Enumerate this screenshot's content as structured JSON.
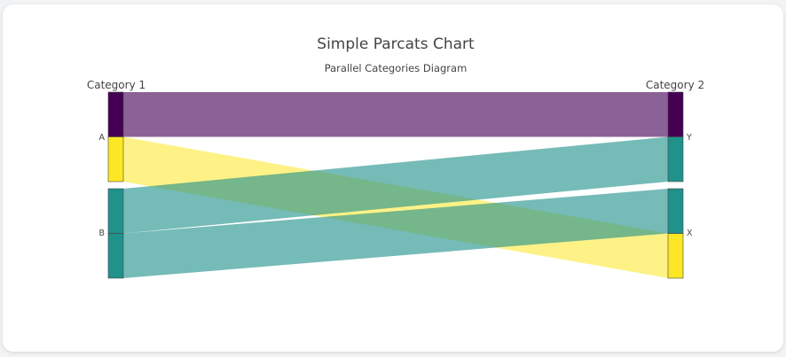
{
  "chart_data": {
    "type": "parcats",
    "title": "Simple Parcats Chart",
    "subtitle": "Parallel Categories Diagram",
    "dimensions": [
      {
        "label": "Category 1",
        "categories": [
          "A",
          "B"
        ]
      },
      {
        "label": "Category 2",
        "categories": [
          "Y",
          "X"
        ]
      }
    ],
    "flows": [
      {
        "from": "A",
        "to": "Y",
        "count": 1,
        "color": "#440154"
      },
      {
        "from": "A",
        "to": "X",
        "count": 1,
        "color": "#fde725"
      },
      {
        "from": "B",
        "to": "Y",
        "count": 1,
        "color": "#21918c"
      },
      {
        "from": "B",
        "to": "X",
        "count": 1,
        "color": "#21918c"
      }
    ],
    "colors": {
      "dark_purple": "#440154",
      "teal": "#21918c",
      "yellow": "#fde725"
    }
  }
}
